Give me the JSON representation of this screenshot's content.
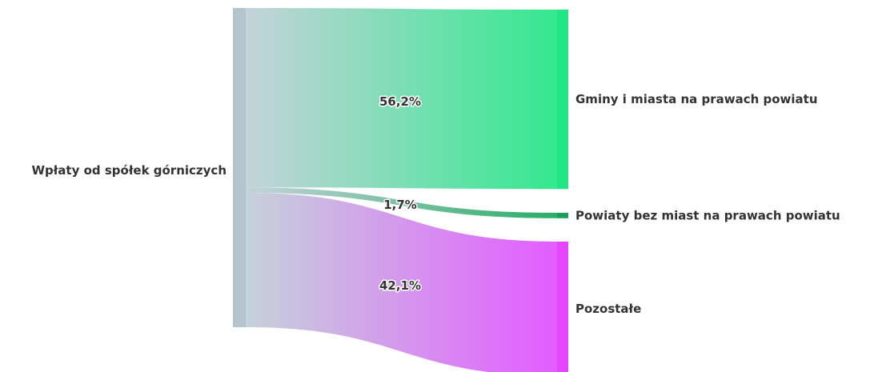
{
  "chart_data": {
    "type": "sankey",
    "source": {
      "label": "Wpłaty od spółek górniczych",
      "color": "#b4c4ce"
    },
    "flows": [
      {
        "target": "Gminy i miasta na prawach powiatu",
        "value": 56.2,
        "value_label": "56,2%",
        "target_color": "#20e686",
        "flow_end_color": "#33e88e"
      },
      {
        "target": "Powiaty bez miast na prawach powiatu",
        "value": 1.7,
        "value_label": "1,7%",
        "target_color": "#1a9e5a",
        "flow_end_color": "#2bad68"
      },
      {
        "target": "Pozostałe",
        "value": 42.1,
        "value_label": "42,1%",
        "target_color": "#e545ff",
        "flow_end_color": "#e35cff"
      }
    ],
    "flow_start_color": "#c5d3da"
  }
}
